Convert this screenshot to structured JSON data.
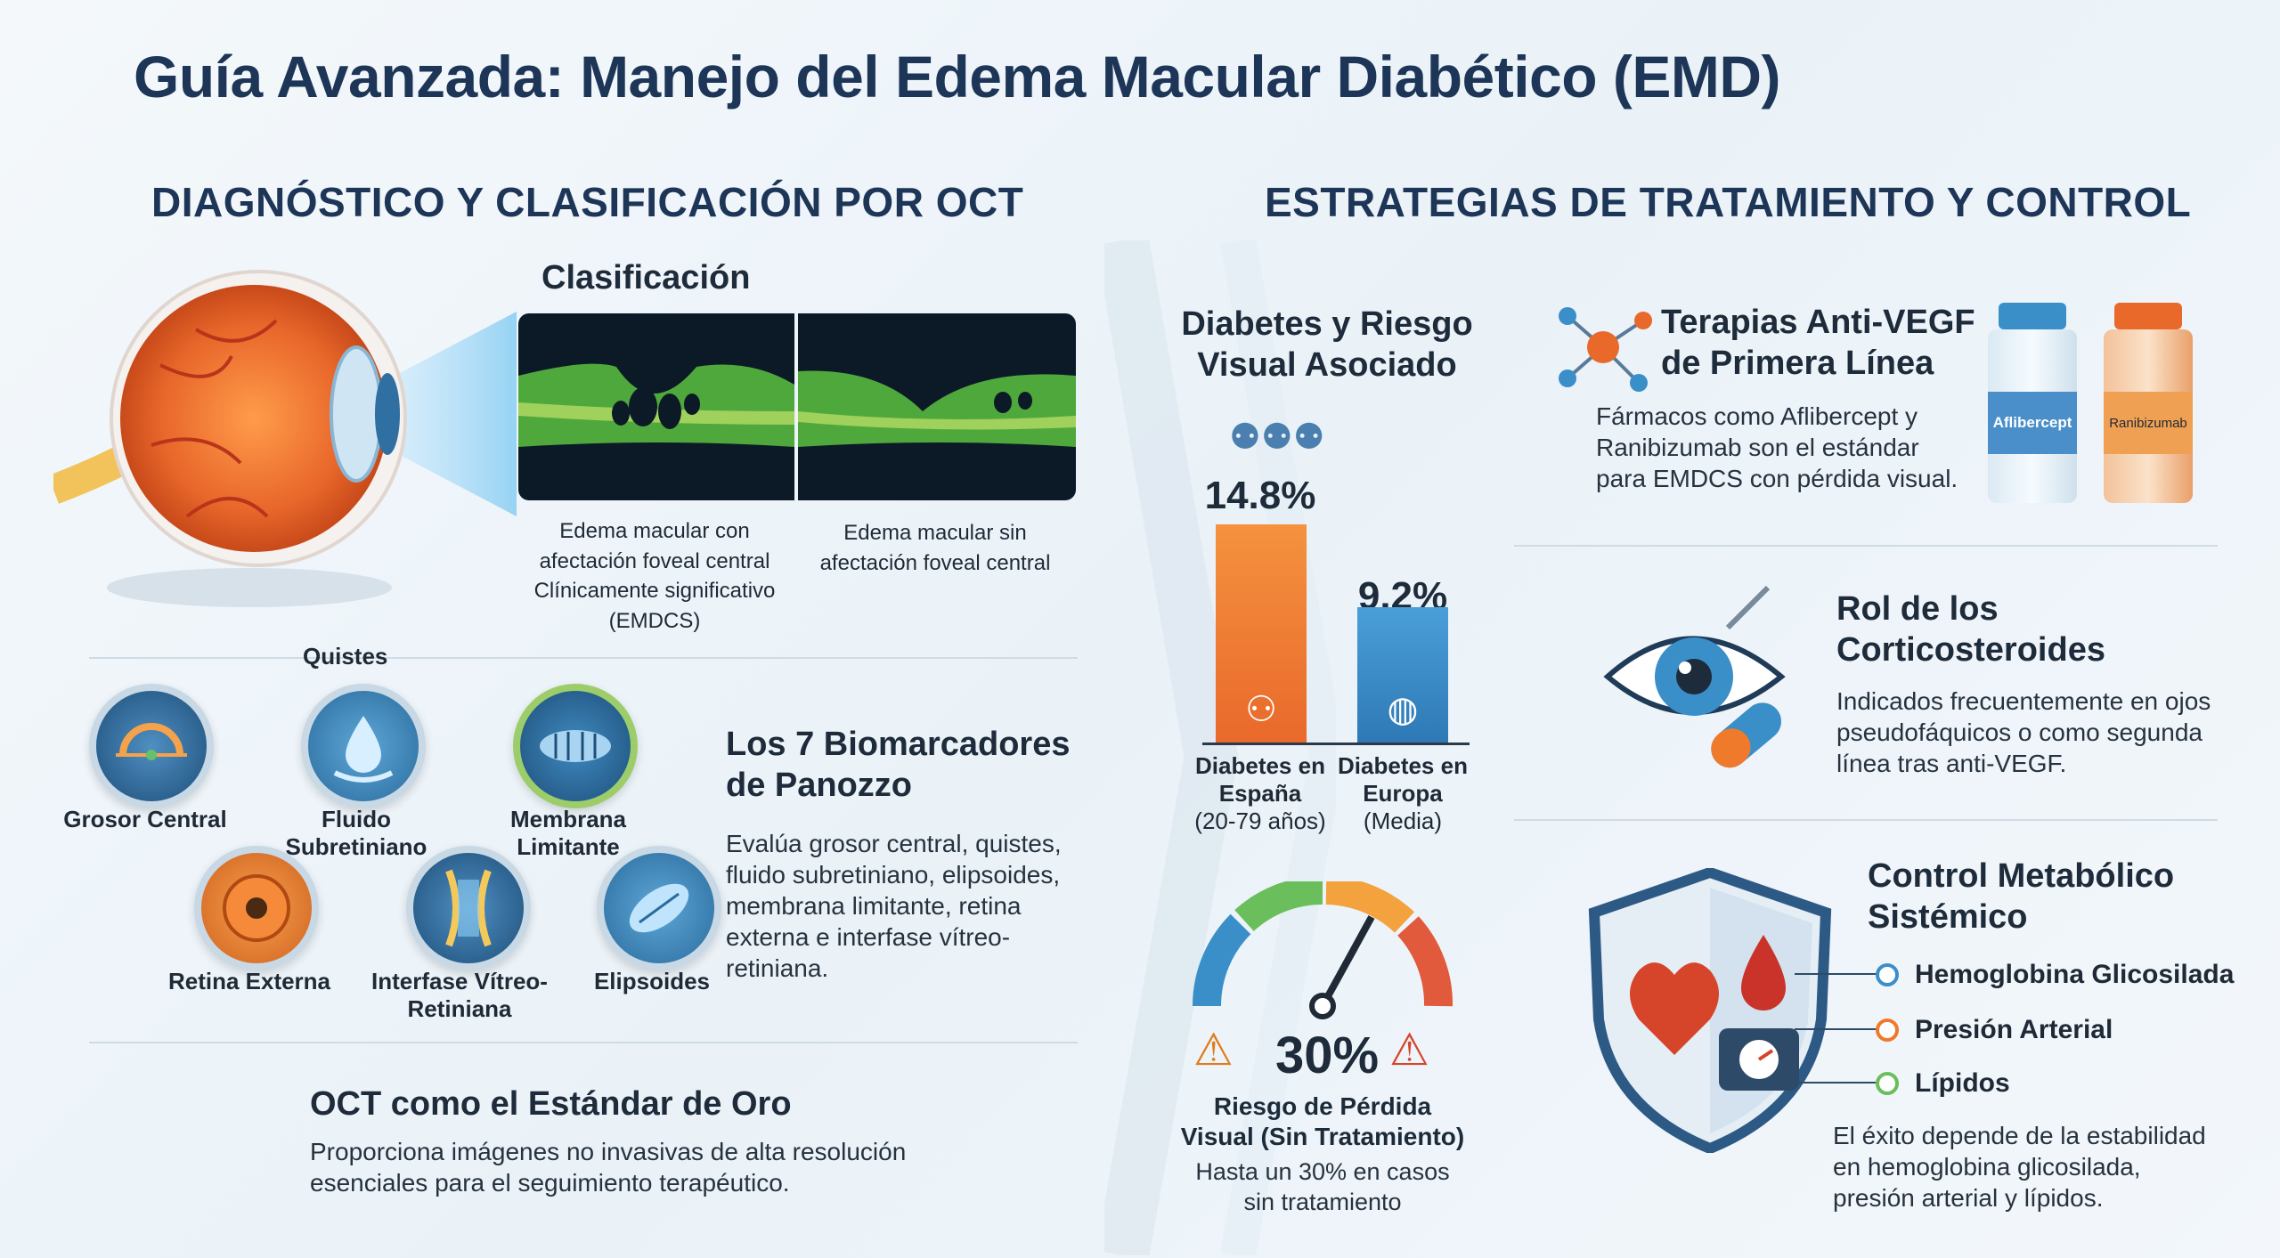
{
  "title": "Guía Avanzada: Manejo del Edema Macular Diabético (EMD)",
  "left": {
    "section_title": "DIAGNÓSTICO Y CLASIFICACIÓN POR OCT",
    "classification_title": "Clasificación",
    "oct_captions": [
      "Edema macular con afectación foveal central Clínicamente significativo (EMDCS)",
      "Edema macular sin afectación foveal central"
    ],
    "biomarkers": {
      "label_quistes": "Quistes",
      "items": [
        {
          "label": "Grosor Central",
          "icon": "central-thickness-icon"
        },
        {
          "label": "Fluido Subretiniano",
          "icon": "fluid-drop-icon"
        },
        {
          "label": "Membrana Limitante",
          "icon": "membrane-icon"
        },
        {
          "label": "Retina Externa",
          "icon": "outer-retina-icon"
        },
        {
          "label": "Interfase Vítreo-Retiniana",
          "icon": "interface-icon"
        },
        {
          "label": "Elipsoides",
          "icon": "ellipsoid-icon"
        }
      ],
      "heading": "Los 7 Biomarcadores de Panozzo",
      "description": "Evalúa grosor central, quistes, fluido subretiniano, elipsoides, membrana limitante, retina externa e interfase vítreo-retiniana."
    },
    "oct_gold": {
      "heading": "OCT como el Estándar de Oro",
      "description": "Proporciona imágenes no invasivas de alta resolución esenciales para el seguimiento terapéutico."
    }
  },
  "right": {
    "section_title": "ESTRATEGIAS DE TRATAMIENTO Y CONTROL",
    "risk": {
      "heading": "Diabetes y Riesgo Visual Asociado",
      "bars": [
        {
          "value_label": "14.8%",
          "value": 14.8,
          "label": "Diabetes en España",
          "sub": "(20-79 años)",
          "color": "#f07a2c"
        },
        {
          "value_label": "9.2%",
          "value": 9.2,
          "label": "Diabetes en Europa",
          "sub": "(Media)",
          "color": "#3a8fc9"
        }
      ],
      "gauge_value": "30%",
      "gauge_title": "Riesgo de Pérdida Visual (Sin Tratamiento)",
      "gauge_desc": "Hasta un 30% en casos sin tratamiento"
    },
    "anti_vegf": {
      "heading": "Terapias Anti-VEGF de Primera Línea",
      "description": "Fármacos como Aflibercept y Ranibizumab son el estándar para EMDCS con pérdida visual.",
      "vial1": "Aflibercept",
      "vial2": "Ranibizumab"
    },
    "corticosteroids": {
      "heading": "Rol de los Corticosteroides",
      "description": "Indicados frecuentemente en ojos pseudofáquicos o como segunda línea tras anti-VEGF."
    },
    "metabolic": {
      "heading": "Control Metabólico Sistémico",
      "items": [
        "Hemoglobina Glicosilada",
        "Presión Arterial",
        "Lípidos"
      ],
      "description": "El éxito depende de la estabilidad en hemoglobina glicosilada, presión arterial y lípidos."
    }
  }
}
